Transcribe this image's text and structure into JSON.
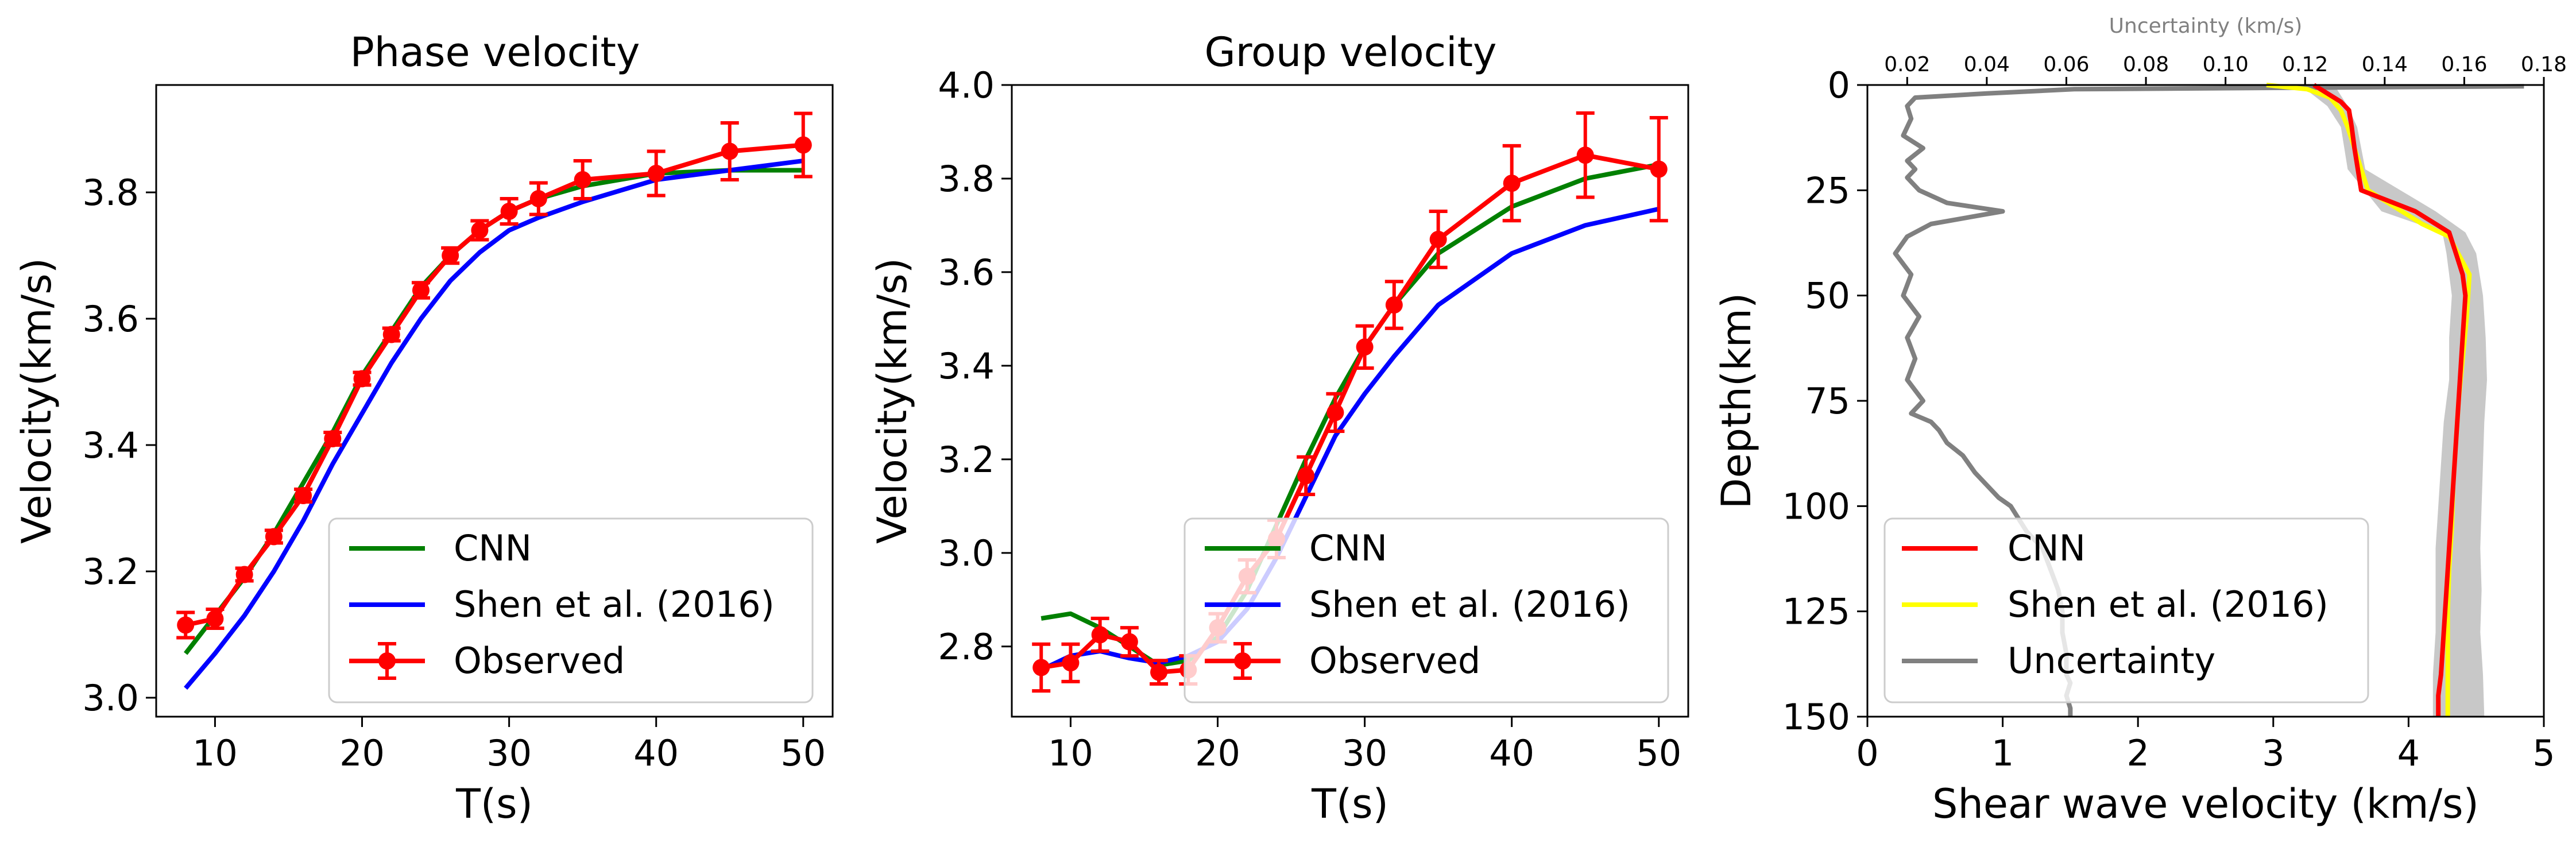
{
  "chart_data": [
    {
      "type": "line",
      "title": "Phase velocity",
      "xlabel": "T(s)",
      "ylabel": "Velocity(km/s)",
      "xlim": [
        6,
        52
      ],
      "ylim": [
        2.97,
        3.97
      ],
      "xticks": [
        10,
        20,
        30,
        40,
        50
      ],
      "yticks": [
        3.0,
        3.2,
        3.4,
        3.6,
        3.8
      ],
      "ytick_labels": [
        "3.0",
        "3.2",
        "3.4",
        "3.6",
        "3.8"
      ],
      "legend_position": "lower right",
      "series": [
        {
          "name": "CNN",
          "color": "#008000",
          "x": [
            8,
            10,
            12,
            14,
            16,
            18,
            20,
            22,
            24,
            26,
            28,
            30,
            32,
            35,
            40,
            45,
            50
          ],
          "y": [
            3.07,
            3.13,
            3.19,
            3.26,
            3.34,
            3.42,
            3.51,
            3.58,
            3.65,
            3.7,
            3.74,
            3.77,
            3.79,
            3.81,
            3.83,
            3.835,
            3.835
          ]
        },
        {
          "name": "Shen et al. (2016)",
          "color": "#0000ff",
          "x": [
            8,
            10,
            12,
            14,
            16,
            18,
            20,
            22,
            24,
            26,
            28,
            30,
            32,
            35,
            40,
            45,
            50
          ],
          "y": [
            3.015,
            3.07,
            3.13,
            3.2,
            3.28,
            3.37,
            3.45,
            3.53,
            3.6,
            3.66,
            3.705,
            3.74,
            3.76,
            3.785,
            3.82,
            3.835,
            3.85
          ]
        },
        {
          "name": "Observed",
          "color": "#ff0000",
          "error_bars": true,
          "x": [
            8,
            10,
            12,
            14,
            16,
            18,
            20,
            22,
            24,
            26,
            28,
            30,
            32,
            35,
            40,
            45,
            50
          ],
          "y": [
            3.115,
            3.125,
            3.195,
            3.255,
            3.32,
            3.41,
            3.505,
            3.575,
            3.645,
            3.7,
            3.74,
            3.77,
            3.79,
            3.82,
            3.83,
            3.865,
            3.875
          ],
          "err": [
            0.02,
            0.015,
            0.01,
            0.01,
            0.01,
            0.01,
            0.01,
            0.01,
            0.012,
            0.012,
            0.015,
            0.02,
            0.025,
            0.03,
            0.035,
            0.045,
            0.05
          ]
        }
      ]
    },
    {
      "type": "line",
      "title": "Group velocity",
      "xlabel": "T(s)",
      "ylabel": "Velocity(km/s)",
      "xlim": [
        6,
        52
      ],
      "ylim": [
        2.65,
        4.0
      ],
      "xticks": [
        10,
        20,
        30,
        40,
        50
      ],
      "yticks": [
        2.8,
        3.0,
        3.2,
        3.4,
        3.6,
        3.8,
        4.0
      ],
      "ytick_labels": [
        "2.8",
        "3.0",
        "3.2",
        "3.4",
        "3.6",
        "3.8",
        "4.0"
      ],
      "legend_position": "lower right",
      "series": [
        {
          "name": "CNN",
          "color": "#008000",
          "x": [
            8,
            10,
            12,
            14,
            16,
            18,
            20,
            22,
            24,
            26,
            28,
            30,
            32,
            35,
            40,
            45,
            50
          ],
          "y": [
            2.86,
            2.87,
            2.84,
            2.8,
            2.76,
            2.77,
            2.82,
            2.92,
            3.06,
            3.2,
            3.33,
            3.44,
            3.53,
            3.64,
            3.74,
            3.8,
            3.83
          ]
        },
        {
          "name": "Shen et al. (2016)",
          "color": "#0000ff",
          "x": [
            8,
            10,
            12,
            14,
            16,
            18,
            20,
            22,
            24,
            26,
            28,
            30,
            32,
            35,
            40,
            45,
            50
          ],
          "y": [
            2.75,
            2.78,
            2.79,
            2.775,
            2.765,
            2.78,
            2.81,
            2.88,
            2.99,
            3.12,
            3.25,
            3.34,
            3.42,
            3.53,
            3.64,
            3.7,
            3.735
          ]
        },
        {
          "name": "Observed",
          "color": "#ff0000",
          "error_bars": true,
          "x": [
            8,
            10,
            12,
            14,
            16,
            18,
            20,
            22,
            24,
            26,
            28,
            30,
            32,
            35,
            40,
            45,
            50
          ],
          "y": [
            2.755,
            2.765,
            2.825,
            2.81,
            2.745,
            2.75,
            2.84,
            2.95,
            3.03,
            3.165,
            3.3,
            3.44,
            3.53,
            3.67,
            3.79,
            3.85,
            3.82
          ],
          "err": [
            0.05,
            0.04,
            0.035,
            0.03,
            0.025,
            0.03,
            0.03,
            0.035,
            0.04,
            0.04,
            0.04,
            0.045,
            0.05,
            0.06,
            0.08,
            0.09,
            0.11
          ]
        }
      ]
    },
    {
      "type": "line",
      "xlabel": "Shear wave velocity (km/s)",
      "ylabel": "Depth(km)",
      "top_axis_label": "Uncertainty (km/s)",
      "xlim": [
        0,
        5
      ],
      "ylim": [
        150,
        0
      ],
      "y_inverted": true,
      "xticks": [
        0,
        1,
        2,
        3,
        4,
        5
      ],
      "yticks": [
        0,
        25,
        50,
        75,
        100,
        125,
        150
      ],
      "top_xlim": [
        0.01,
        0.18
      ],
      "top_xticks": [
        0.02,
        0.04,
        0.06,
        0.08,
        0.1,
        0.12,
        0.14,
        0.16,
        0.18
      ],
      "top_xtick_labels": [
        "0.02",
        "0.04",
        "0.06",
        "0.08",
        "0.10",
        "0.12",
        "0.14",
        "0.16",
        "0.18"
      ],
      "legend_position": "lower left",
      "series": [
        {
          "name": "CNN",
          "color": "#ff0000",
          "v": [
            3.3,
            3.4,
            3.5,
            3.56,
            3.58,
            3.6,
            3.65,
            4.05,
            4.3,
            4.35,
            4.4,
            4.42,
            4.4,
            4.38,
            4.36,
            4.34,
            4.32,
            4.3,
            4.28,
            4.26,
            4.24,
            4.22,
            4.22
          ],
          "depth": [
            0,
            2,
            4,
            6,
            10,
            15,
            25,
            30,
            35,
            40,
            45,
            50,
            60,
            70,
            80,
            90,
            100,
            110,
            120,
            130,
            140,
            145,
            150
          ]
        },
        {
          "name": "Shen et al. (2016)",
          "color": "#ffff00",
          "v": [
            2.95,
            3.25,
            3.42,
            3.5,
            3.55,
            3.6,
            3.7,
            3.95,
            4.1,
            4.3,
            4.45,
            4.43,
            4.4,
            4.37,
            4.35,
            4.33,
            4.32,
            4.3,
            4.29,
            4.29,
            4.29,
            4.29
          ],
          "depth": [
            0,
            1,
            3,
            6,
            10,
            15,
            25,
            30,
            33,
            36,
            45,
            55,
            65,
            75,
            85,
            95,
            105,
            115,
            125,
            135,
            145,
            150
          ]
        },
        {
          "name": "Uncertainty",
          "color": "#808080",
          "u": [
            0.175,
            0.062,
            0.04,
            0.022,
            0.02,
            0.021,
            0.019,
            0.024,
            0.02,
            0.022,
            0.02,
            0.023,
            0.03,
            0.044,
            0.026,
            0.02,
            0.017,
            0.021,
            0.019,
            0.023,
            0.02,
            0.022,
            0.02,
            0.024,
            0.021,
            0.026,
            0.028,
            0.03,
            0.034,
            0.037,
            0.04,
            0.043,
            0.046,
            0.048,
            0.05,
            0.054,
            0.056,
            0.058,
            0.059,
            0.059,
            0.06,
            0.06,
            0.061,
            0.06,
            0.061,
            0.061
          ],
          "depth": [
            0.3,
            1,
            2,
            3,
            5,
            8,
            12,
            15,
            18,
            20,
            22,
            25,
            28,
            30,
            33,
            36,
            40,
            45,
            50,
            55,
            60,
            65,
            70,
            75,
            78,
            80,
            82,
            85,
            88,
            92,
            95,
            98,
            100,
            103,
            106,
            110,
            115,
            120,
            125,
            130,
            135,
            140,
            142,
            145,
            148,
            150
          ]
        }
      ],
      "shaded_band": {
        "color": "#c8c8c8",
        "depth": [
          0,
          5,
          10,
          20,
          30,
          35,
          40,
          50,
          60,
          70,
          80,
          90,
          100,
          110,
          120,
          130,
          140,
          150
        ],
        "v_min": [
          3.2,
          3.4,
          3.5,
          3.55,
          3.8,
          4.25,
          4.28,
          4.32,
          4.3,
          4.3,
          4.26,
          4.24,
          4.22,
          4.2,
          4.2,
          4.2,
          4.18,
          4.18
        ],
        "v_max": [
          3.45,
          3.55,
          3.62,
          3.68,
          4.2,
          4.42,
          4.5,
          4.55,
          4.57,
          4.58,
          4.56,
          4.55,
          4.54,
          4.53,
          4.54,
          4.53,
          4.55,
          4.56
        ]
      }
    }
  ]
}
